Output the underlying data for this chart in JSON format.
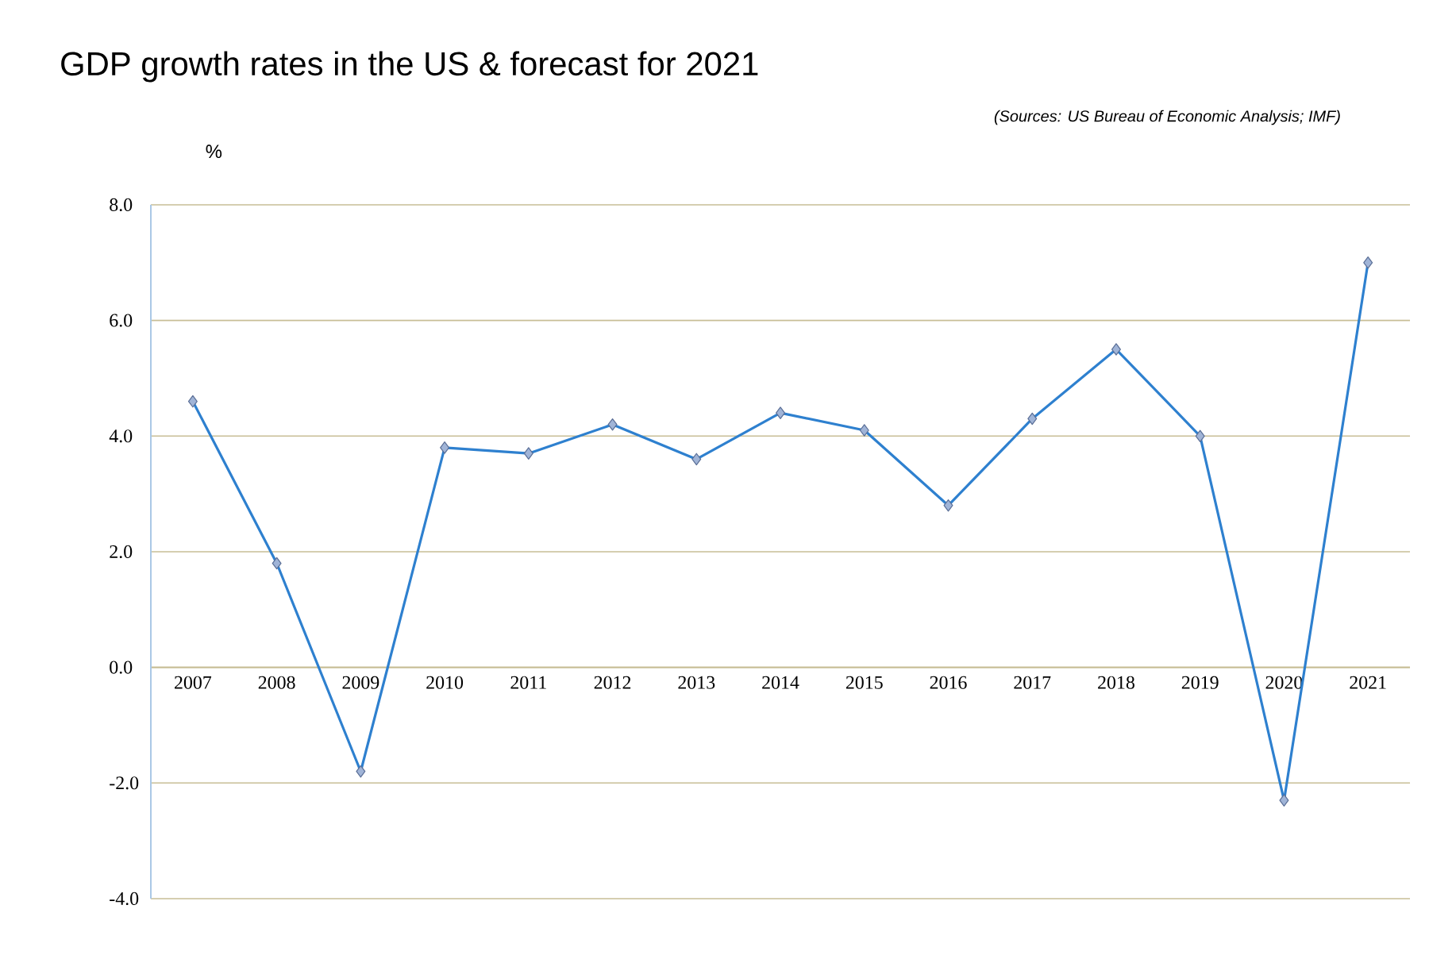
{
  "chart_data": {
    "type": "line",
    "title": "GDP growth rates in the US & forecast for 2021",
    "annotations": [
      "(Sources: US Bureau of Economic Analysis; IMF)"
    ],
    "ylabel": "%",
    "categories": [
      "2007",
      "2008",
      "2009",
      "2010",
      "2011",
      "2012",
      "2013",
      "2014",
      "2015",
      "2016",
      "2017",
      "2018",
      "2019",
      "2020",
      "2021"
    ],
    "series": [
      {
        "color": "#2e80cf",
        "values": [
          4.6,
          1.8,
          -1.8,
          3.8,
          3.7,
          4.2,
          3.6,
          4.4,
          4.1,
          2.8,
          4.3,
          5.5,
          4.0,
          -2.3,
          7.0
        ]
      }
    ],
    "ylim": [
      -4,
      8
    ],
    "yticks": [
      {
        "value": -4,
        "label": "-4.0"
      },
      {
        "value": -2,
        "label": "-2.0"
      },
      {
        "value": 0,
        "label": "0.0"
      },
      {
        "value": 2,
        "label": "2.0"
      },
      {
        "value": 4,
        "label": "4.0"
      },
      {
        "value": 6,
        "label": "6.0"
      },
      {
        "value": 8,
        "label": "8.0"
      }
    ],
    "grid": "y",
    "marker": "diamond",
    "line_style": "solid"
  }
}
